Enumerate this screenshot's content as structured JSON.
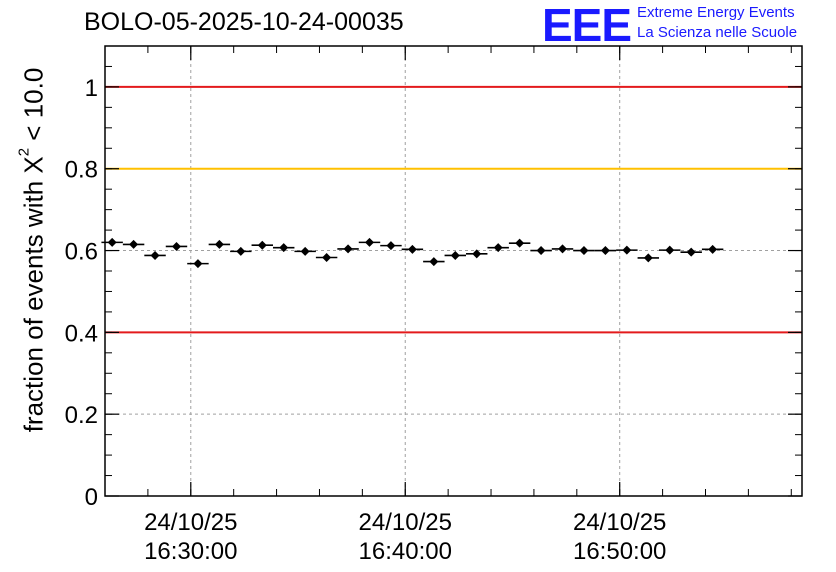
{
  "title": "BOLO-05-2025-10-24-00035",
  "logo": {
    "mark": "EEE",
    "line1": "Extreme Energy Events",
    "line2": "La Scienza nelle Scuole"
  },
  "chart_data": {
    "type": "scatter",
    "title": "BOLO-05-2025-10-24-00035",
    "ylabel_prefix": "fraction of events with ",
    "ylabel_symbol": "X",
    "ylabel_superscript": "2",
    "ylabel_suffix": " < 10.0",
    "xlabel": "",
    "ylim": [
      0,
      1.1
    ],
    "xlim": [
      "2025-10-24 16:26:00",
      "2025-10-24 16:58:30"
    ],
    "yticks": [
      {
        "value": 0,
        "label": "0"
      },
      {
        "value": 0.2,
        "label": "0.2"
      },
      {
        "value": 0.4,
        "label": "0.4"
      },
      {
        "value": 0.6,
        "label": "0.6"
      },
      {
        "value": 0.8,
        "label": "0.8"
      },
      {
        "value": 1,
        "label": "1"
      }
    ],
    "xticks": [
      {
        "time": "2025-10-24 16:30:00",
        "date": "24/10/25",
        "clock": "16:30:00"
      },
      {
        "time": "2025-10-24 16:40:00",
        "date": "24/10/25",
        "clock": "16:40:00"
      },
      {
        "time": "2025-10-24 16:50:00",
        "date": "24/10/25",
        "clock": "16:50:00"
      }
    ],
    "grid": true,
    "reference_lines": [
      {
        "value": 1.0,
        "color": "#e31a1c"
      },
      {
        "value": 0.8,
        "color": "#ffc000"
      },
      {
        "value": 0.4,
        "color": "#e31a1c"
      }
    ],
    "point_color": "#000000",
    "bin_width_minutes": 1,
    "points": [
      {
        "x": "2025-10-24 16:26:20",
        "y": 0.62
      },
      {
        "x": "2025-10-24 16:27:20",
        "y": 0.615
      },
      {
        "x": "2025-10-24 16:28:20",
        "y": 0.588
      },
      {
        "x": "2025-10-24 16:29:20",
        "y": 0.61
      },
      {
        "x": "2025-10-24 16:30:20",
        "y": 0.568
      },
      {
        "x": "2025-10-24 16:31:20",
        "y": 0.615
      },
      {
        "x": "2025-10-24 16:32:20",
        "y": 0.598
      },
      {
        "x": "2025-10-24 16:33:20",
        "y": 0.613
      },
      {
        "x": "2025-10-24 16:34:20",
        "y": 0.607
      },
      {
        "x": "2025-10-24 16:35:20",
        "y": 0.598
      },
      {
        "x": "2025-10-24 16:36:20",
        "y": 0.583
      },
      {
        "x": "2025-10-24 16:37:20",
        "y": 0.604
      },
      {
        "x": "2025-10-24 16:38:20",
        "y": 0.62
      },
      {
        "x": "2025-10-24 16:39:20",
        "y": 0.612
      },
      {
        "x": "2025-10-24 16:40:20",
        "y": 0.603
      },
      {
        "x": "2025-10-24 16:41:20",
        "y": 0.573
      },
      {
        "x": "2025-10-24 16:42:20",
        "y": 0.588
      },
      {
        "x": "2025-10-24 16:43:20",
        "y": 0.592
      },
      {
        "x": "2025-10-24 16:44:20",
        "y": 0.607
      },
      {
        "x": "2025-10-24 16:45:20",
        "y": 0.618
      },
      {
        "x": "2025-10-24 16:46:20",
        "y": 0.6
      },
      {
        "x": "2025-10-24 16:47:20",
        "y": 0.604
      },
      {
        "x": "2025-10-24 16:48:20",
        "y": 0.6
      },
      {
        "x": "2025-10-24 16:49:20",
        "y": 0.6
      },
      {
        "x": "2025-10-24 16:50:20",
        "y": 0.601
      },
      {
        "x": "2025-10-24 16:51:20",
        "y": 0.582
      },
      {
        "x": "2025-10-24 16:52:20",
        "y": 0.601
      },
      {
        "x": "2025-10-24 16:53:20",
        "y": 0.596
      },
      {
        "x": "2025-10-24 16:54:20",
        "y": 0.603
      }
    ]
  }
}
